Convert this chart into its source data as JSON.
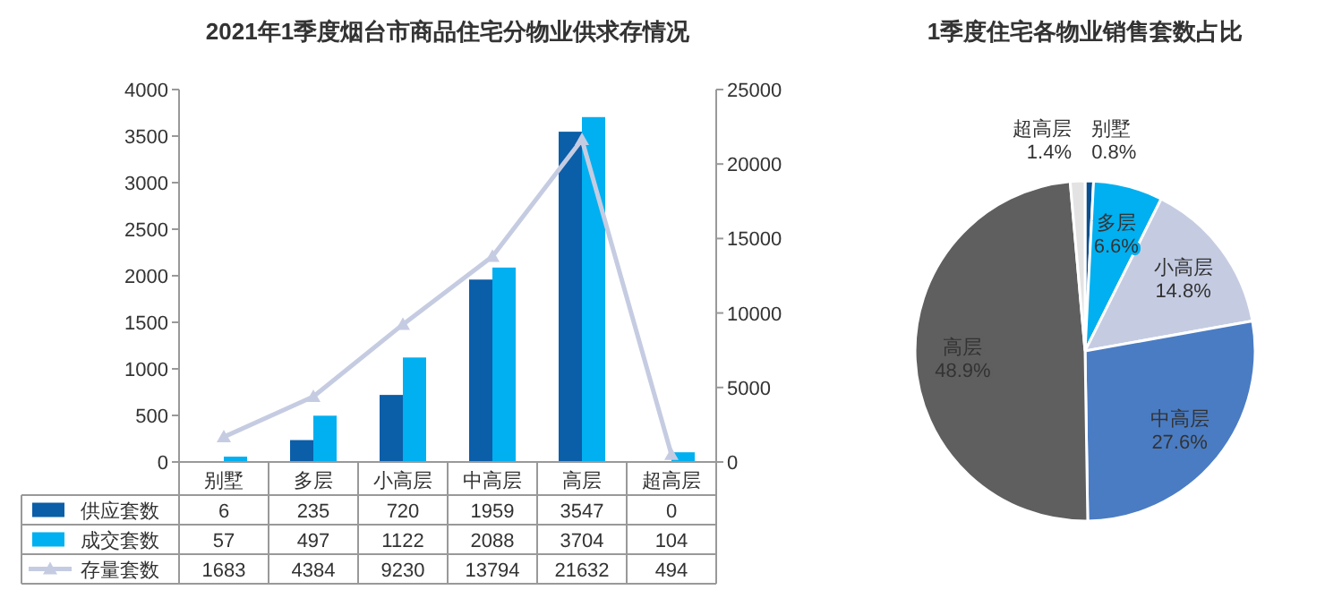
{
  "chart_data": [
    {
      "type": "bar",
      "title": "2021年1季度烟台市商品住宅分物业供求存情况",
      "categories": [
        "别墅",
        "多层",
        "小高层",
        "中高层",
        "高层",
        "超高层"
      ],
      "ylim": [
        0,
        4000
      ],
      "yticks": [
        0,
        500,
        1000,
        1500,
        2000,
        2500,
        3000,
        3500,
        4000
      ],
      "y2lim": [
        0,
        25000
      ],
      "y2ticks": [
        0,
        5000,
        10000,
        15000,
        20000,
        25000
      ],
      "data_labels": true,
      "legend": "bottom",
      "series": [
        {
          "name": "供应套数",
          "color": "#0b5ea8",
          "values": [
            6,
            235,
            720,
            1959,
            3547,
            0
          ]
        },
        {
          "name": "成交套数",
          "color": "#00b0f0",
          "values": [
            57,
            497,
            1122,
            2088,
            3704,
            104
          ]
        },
        {
          "name": "存量套数",
          "type": "line",
          "axis": "y2",
          "marker": "triangle",
          "color": "#c5cce2",
          "values": [
            1683,
            4384,
            9230,
            13794,
            21632,
            494
          ]
        }
      ]
    },
    {
      "type": "pie",
      "title": "1季度住宅各物业销售套数占比",
      "categories": [
        "别墅",
        "多层",
        "小高层",
        "中高层",
        "高层",
        "超高层"
      ],
      "values": [
        0.8,
        6.6,
        14.8,
        27.6,
        48.9,
        1.4
      ],
      "value_labels": [
        "0.8%",
        "6.6%",
        "14.8%",
        "27.6%",
        "48.9%",
        "1.4%"
      ],
      "colors": [
        "#0b4f8e",
        "#00b0f0",
        "#c5cce2",
        "#4a7cc3",
        "#5f5f5f",
        "#e3e3e3"
      ]
    }
  ]
}
